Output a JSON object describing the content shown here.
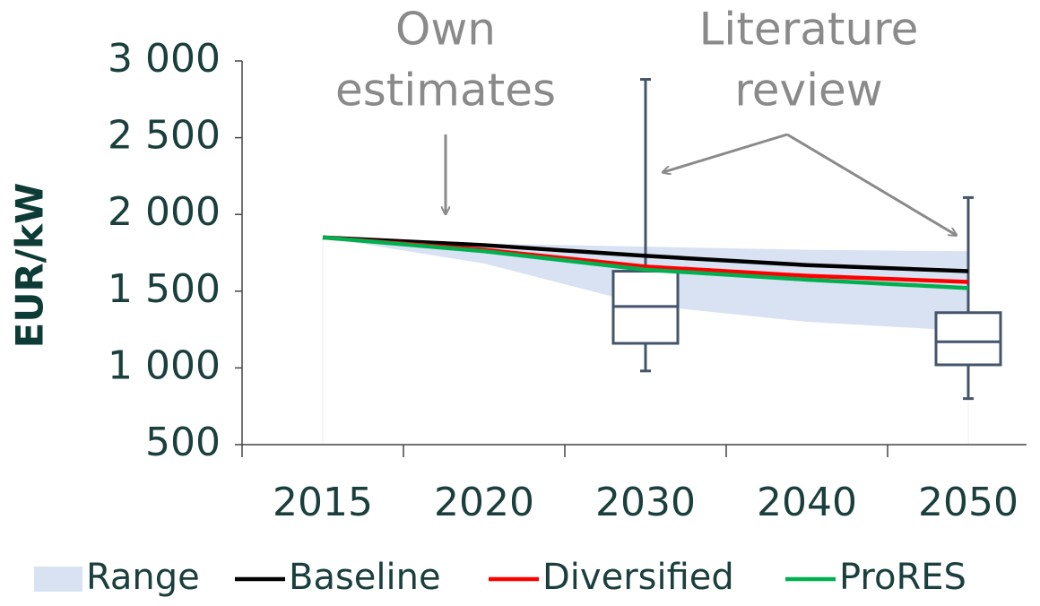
{
  "chart_data": {
    "type": "line",
    "y_label": "EUR/kW",
    "categories": [
      "2015",
      "2020",
      "2030",
      "2040",
      "2050"
    ],
    "ylim": [
      500,
      3000
    ],
    "yticks": [
      500,
      {
        "value": 1000,
        "label": "1 000"
      },
      {
        "value": 1500,
        "label": "1 500"
      },
      {
        "value": 2000,
        "label": "2 000"
      },
      {
        "value": 2500,
        "label": "2 500"
      },
      {
        "value": 3000,
        "label": "3 000"
      }
    ],
    "range": {
      "name": "Range",
      "color": "#d9e2f3",
      "lower": [
        1850,
        1680,
        1410,
        1300,
        1240
      ],
      "upper": [
        1850,
        1810,
        1790,
        1770,
        1760
      ]
    },
    "series": [
      {
        "name": "Baseline",
        "color": "#000000",
        "values": [
          1850,
          1800,
          1730,
          1670,
          1630
        ]
      },
      {
        "name": "Diversified",
        "color": "#ff0000",
        "values": [
          1850,
          1770,
          1660,
          1600,
          1560
        ]
      },
      {
        "name": "ProRES",
        "color": "#00b050",
        "values": [
          1850,
          1760,
          1640,
          1575,
          1520
        ]
      }
    ],
    "boxes": {
      "color": "#44546a",
      "min": [
        null,
        null,
        980,
        null,
        800
      ],
      "q1": [
        null,
        null,
        1160,
        null,
        1020
      ],
      "median": [
        null,
        null,
        1400,
        null,
        1170
      ],
      "q3": [
        null,
        null,
        1630,
        null,
        1360
      ],
      "max": [
        null,
        null,
        2880,
        null,
        2110
      ]
    },
    "annotations": [
      {
        "lines": [
          "Own",
          "estimates"
        ]
      },
      {
        "lines": [
          "Literature",
          "review"
        ]
      }
    ]
  }
}
